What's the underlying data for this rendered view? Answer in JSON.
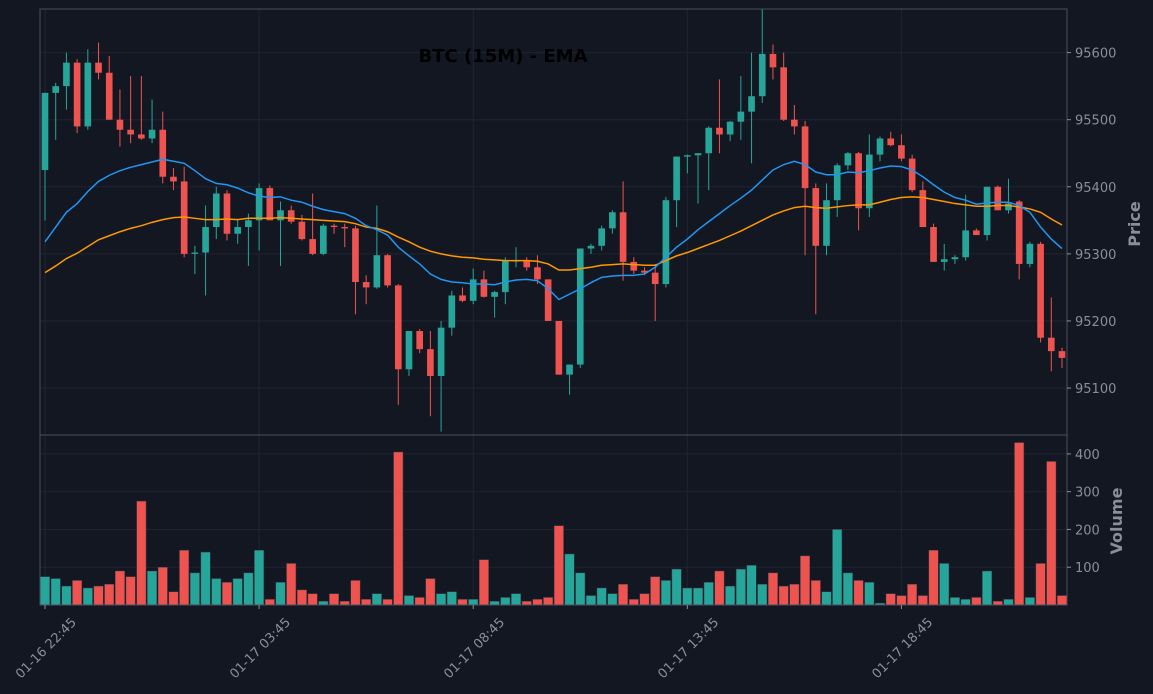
{
  "chart_data": {
    "type": "candlestick",
    "title": "BTC (15M) - EMA",
    "price_axis_label": "Price",
    "volume_axis_label": "Volume",
    "price_range": [
      95030,
      95665
    ],
    "volume_range": [
      0,
      450
    ],
    "price_ticks": [
      "95100",
      "95200",
      "95300",
      "95400",
      "95500",
      "95600"
    ],
    "volume_ticks": [
      "100",
      "200",
      "300",
      "400"
    ],
    "x_ticks": [
      {
        "index": 0,
        "label": "01-16 22:45"
      },
      {
        "index": 20,
        "label": "01-17 03:45"
      },
      {
        "index": 40,
        "label": "01-17 08:45"
      },
      {
        "index": 60,
        "label": "01-17 13:45"
      },
      {
        "index": 80,
        "label": "01-17 18:45"
      }
    ],
    "colors": {
      "up": "#26a69a",
      "down": "#ef5350",
      "ema_fast": "#2196f3",
      "ema_slow": "#ff9800",
      "background": "#131722",
      "grid": "#1f2430",
      "frame": "#4a4f5c"
    },
    "candles": [
      [
        95425,
        95540,
        95350,
        95540,
        75
      ],
      [
        95540,
        95555,
        95470,
        95550,
        70
      ],
      [
        95550,
        95600,
        95515,
        95585,
        50
      ],
      [
        95585,
        95590,
        95480,
        95490,
        65
      ],
      [
        95490,
        95605,
        95485,
        95585,
        45
      ],
      [
        95585,
        95615,
        95560,
        95570,
        50
      ],
      [
        95570,
        95595,
        95500,
        95500,
        55
      ],
      [
        95500,
        95545,
        95460,
        95485,
        90
      ],
      [
        95485,
        95565,
        95465,
        95478,
        75
      ],
      [
        95478,
        95565,
        95470,
        95472,
        275
      ],
      [
        95472,
        95530,
        95465,
        95485,
        90
      ],
      [
        95485,
        95512,
        95405,
        95415,
        100
      ],
      [
        95415,
        95428,
        95395,
        95408,
        35
      ],
      [
        95408,
        95430,
        95295,
        95300,
        145
      ],
      [
        95300,
        95312,
        95270,
        95302,
        85
      ],
      [
        95302,
        95372,
        95238,
        95340,
        140
      ],
      [
        95340,
        95400,
        95322,
        95390,
        70
      ],
      [
        95390,
        95395,
        95320,
        95330,
        60
      ],
      [
        95330,
        95352,
        95315,
        95340,
        70
      ],
      [
        95340,
        95360,
        95282,
        95350,
        85
      ],
      [
        95350,
        95405,
        95305,
        95398,
        145
      ],
      [
        95398,
        95402,
        95350,
        95350,
        15
      ],
      [
        95350,
        95378,
        95282,
        95365,
        60
      ],
      [
        95365,
        95372,
        95345,
        95348,
        110
      ],
      [
        95348,
        95358,
        95320,
        95322,
        40
      ],
      [
        95322,
        95390,
        95298,
        95300,
        30
      ],
      [
        95300,
        95345,
        95298,
        95342,
        10
      ],
      [
        95342,
        95345,
        95330,
        95340,
        30
      ],
      [
        95340,
        95345,
        95310,
        95338,
        10
      ],
      [
        95338,
        95342,
        95210,
        95258,
        65
      ],
      [
        95258,
        95268,
        95225,
        95250,
        15
      ],
      [
        95250,
        95372,
        95248,
        95298,
        30
      ],
      [
        95298,
        95300,
        95250,
        95253,
        15
      ],
      [
        95253,
        95255,
        95075,
        95128,
        405
      ],
      [
        95128,
        95185,
        95118,
        95185,
        25
      ],
      [
        95185,
        95188,
        95152,
        95158,
        20
      ],
      [
        95158,
        95185,
        95058,
        95118,
        70
      ],
      [
        95118,
        95200,
        95035,
        95190,
        30
      ],
      [
        95190,
        95245,
        95178,
        95238,
        35
      ],
      [
        95238,
        95250,
        95228,
        95230,
        15
      ],
      [
        95230,
        95278,
        95225,
        95262,
        15
      ],
      [
        95262,
        95275,
        95235,
        95236,
        120
      ],
      [
        95236,
        95245,
        95205,
        95243,
        10
      ],
      [
        95243,
        95295,
        95225,
        95290,
        20
      ],
      [
        95290,
        95310,
        95280,
        95290,
        30
      ],
      [
        95290,
        95295,
        95275,
        95280,
        10
      ],
      [
        95280,
        95298,
        95255,
        95262,
        15
      ],
      [
        95262,
        95262,
        95200,
        95200,
        20
      ],
      [
        95200,
        95200,
        95120,
        95120,
        210
      ],
      [
        95120,
        95135,
        95090,
        95135,
        135
      ],
      [
        95135,
        95308,
        95130,
        95308,
        85
      ],
      [
        95308,
        95315,
        95300,
        95312,
        25
      ],
      [
        95312,
        95342,
        95305,
        95338,
        45
      ],
      [
        95338,
        95365,
        95330,
        95362,
        30
      ],
      [
        95362,
        95408,
        95260,
        95288,
        55
      ],
      [
        95288,
        95295,
        95270,
        95275,
        15
      ],
      [
        95275,
        95280,
        95268,
        95272,
        30
      ],
      [
        95272,
        95285,
        95200,
        95255,
        75
      ],
      [
        95255,
        95385,
        95250,
        95380,
        65
      ],
      [
        95380,
        95445,
        95340,
        95445,
        95
      ],
      [
        95445,
        95448,
        95420,
        95447,
        45
      ],
      [
        95447,
        95450,
        95375,
        95450,
        45
      ],
      [
        95450,
        95490,
        95395,
        95488,
        60
      ],
      [
        95488,
        95560,
        95450,
        95478,
        90
      ],
      [
        95478,
        95498,
        95468,
        95497,
        50
      ],
      [
        95497,
        95565,
        95470,
        95512,
        95
      ],
      [
        95512,
        95600,
        95435,
        95535,
        105
      ],
      [
        95535,
        95665,
        95525,
        95598,
        55
      ],
      [
        95598,
        95612,
        95560,
        95578,
        85
      ],
      [
        95578,
        95600,
        95498,
        95500,
        50
      ],
      [
        95500,
        95522,
        95478,
        95490,
        55
      ],
      [
        95490,
        95498,
        95298,
        95398,
        130
      ],
      [
        95398,
        95405,
        95210,
        95312,
        65
      ],
      [
        95312,
        95405,
        95298,
        95380,
        35
      ],
      [
        95380,
        95435,
        95355,
        95432,
        200
      ],
      [
        95432,
        95452,
        95425,
        95450,
        85
      ],
      [
        95450,
        95452,
        95335,
        95368,
        65
      ],
      [
        95368,
        95478,
        95355,
        95448,
        60
      ],
      [
        95448,
        95475,
        95438,
        95472,
        5
      ],
      [
        95472,
        95482,
        95460,
        95462,
        30
      ],
      [
        95462,
        95478,
        95438,
        95442,
        25
      ],
      [
        95442,
        95448,
        95392,
        95395,
        55
      ],
      [
        95395,
        95408,
        95340,
        95340,
        25
      ],
      [
        95340,
        95345,
        95288,
        95288,
        145
      ],
      [
        95288,
        95315,
        95275,
        95292,
        110
      ],
      [
        95292,
        95298,
        95285,
        95295,
        20
      ],
      [
        95295,
        95388,
        95290,
        95335,
        15
      ],
      [
        95335,
        95338,
        95328,
        95328,
        20
      ],
      [
        95328,
        95400,
        95320,
        95400,
        90
      ],
      [
        95400,
        95402,
        95365,
        95365,
        10
      ],
      [
        95365,
        95412,
        95360,
        95375,
        15
      ],
      [
        95378,
        95380,
        95262,
        95285,
        430
      ],
      [
        95285,
        95318,
        95280,
        95315,
        20
      ],
      [
        95315,
        95318,
        95168,
        95175,
        110
      ],
      [
        95175,
        95235,
        95125,
        95155,
        380
      ],
      [
        95155,
        95160,
        95130,
        95145,
        25
      ]
    ],
    "ema_fast": [
      95318,
      95340,
      95362,
      95375,
      95393,
      95408,
      95417,
      95424,
      95429,
      95433,
      95437,
      95441,
      95438,
      95435,
      95424,
      95412,
      95405,
      95403,
      95398,
      95391,
      95386,
      95384,
      95385,
      95380,
      95377,
      95371,
      95366,
      95363,
      95360,
      95353,
      95342,
      95336,
      95328,
      95310,
      95297,
      95285,
      95270,
      95262,
      95258,
      95257,
      95255,
      95255,
      95254,
      95258,
      95261,
      95262,
      95260,
      95248,
      95232,
      95240,
      95248,
      95257,
      95265,
      95267,
      95268,
      95268,
      95270,
      95280,
      95295,
      95310,
      95322,
      95336,
      95348,
      95360,
      95372,
      95383,
      95395,
      95410,
      95425,
      95433,
      95438,
      95433,
      95422,
      95418,
      95418,
      95422,
      95421,
      95424,
      95428,
      95431,
      95430,
      95425,
      95415,
      95403,
      95392,
      95384,
      95380,
      95374,
      95376,
      95377,
      95377,
      95372,
      95362,
      95340,
      95322,
      95308
    ],
    "ema_slow": [
      95272,
      95282,
      95293,
      95301,
      95311,
      95321,
      95327,
      95333,
      95338,
      95342,
      95347,
      95351,
      95354,
      95355,
      95353,
      95351,
      95351,
      95352,
      95351,
      95353,
      95353,
      95353,
      95354,
      95353,
      95352,
      95351,
      95350,
      95349,
      95348,
      95345,
      95340,
      95338,
      95333,
      95325,
      95318,
      95310,
      95304,
      95300,
      95297,
      95295,
      95294,
      95292,
      95291,
      95290,
      95290,
      95290,
      95289,
      95285,
      95276,
      95276,
      95278,
      95280,
      95283,
      95284,
      95285,
      95284,
      95283,
      95283,
      95290,
      95297,
      95302,
      95308,
      95314,
      95320,
      95327,
      95334,
      95342,
      95350,
      95358,
      95364,
      95369,
      95371,
      95369,
      95368,
      95370,
      95372,
      95373,
      95373,
      95377,
      95381,
      95384,
      95385,
      95384,
      95381,
      95378,
      95375,
      95373,
      95371,
      95371,
      95372,
      95372,
      95370,
      95367,
      95362,
      95352,
      95343
    ]
  }
}
